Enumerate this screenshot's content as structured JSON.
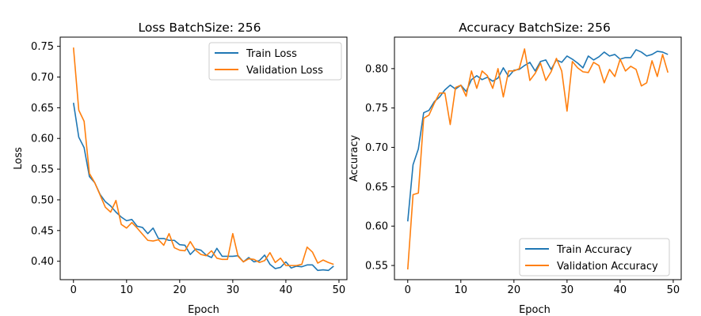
{
  "colors": {
    "train": "#1f77b4",
    "validation": "#ff7f0e"
  },
  "chart_data": [
    {
      "type": "line",
      "title": "Loss BatchSize: 256",
      "xlabel": "Epoch",
      "ylabel": "Loss",
      "xlim": [
        -2.5,
        51.5
      ],
      "ylim": [
        0.37,
        0.765
      ],
      "xticks": [
        0,
        10,
        20,
        30,
        40,
        50
      ],
      "yticks": [
        0.4,
        0.45,
        0.5,
        0.55,
        0.6,
        0.65,
        0.7,
        0.75
      ],
      "ytick_labels": [
        "0.40",
        "0.45",
        "0.50",
        "0.55",
        "0.60",
        "0.65",
        "0.70",
        "0.75"
      ],
      "legend": "upper-right",
      "grid": false,
      "series": [
        {
          "name": "Train Loss",
          "color_key": "train",
          "values": [
            0.658,
            0.602,
            0.585,
            0.538,
            0.528,
            0.509,
            0.497,
            0.49,
            0.48,
            0.472,
            0.466,
            0.468,
            0.457,
            0.455,
            0.445,
            0.454,
            0.437,
            0.437,
            0.434,
            0.434,
            0.427,
            0.426,
            0.411,
            0.42,
            0.418,
            0.41,
            0.406,
            0.421,
            0.408,
            0.408,
            0.408,
            0.409,
            0.399,
            0.406,
            0.399,
            0.401,
            0.41,
            0.395,
            0.388,
            0.39,
            0.399,
            0.389,
            0.392,
            0.391,
            0.394,
            0.394,
            0.385,
            0.386,
            0.385,
            0.392
          ]
        },
        {
          "name": "Validation Loss",
          "color_key": "validation",
          "values": [
            0.748,
            0.646,
            0.628,
            0.543,
            0.528,
            0.508,
            0.488,
            0.48,
            0.499,
            0.46,
            0.454,
            0.463,
            0.454,
            0.444,
            0.434,
            0.433,
            0.435,
            0.426,
            0.445,
            0.422,
            0.418,
            0.417,
            0.432,
            0.418,
            0.411,
            0.409,
            0.417,
            0.405,
            0.403,
            0.403,
            0.445,
            0.408,
            0.399,
            0.404,
            0.403,
            0.398,
            0.401,
            0.414,
            0.398,
            0.405,
            0.393,
            0.393,
            0.393,
            0.395,
            0.423,
            0.415,
            0.397,
            0.402,
            0.398,
            0.395
          ]
        }
      ]
    },
    {
      "type": "line",
      "title": "Accuracy BatchSize: 256",
      "xlabel": "Epoch",
      "ylabel": "Accuracy",
      "xlim": [
        -2.5,
        51.5
      ],
      "ylim": [
        0.532,
        0.84
      ],
      "xticks": [
        0,
        10,
        20,
        30,
        40,
        50
      ],
      "yticks": [
        0.55,
        0.6,
        0.65,
        0.7,
        0.75,
        0.8
      ],
      "ytick_labels": [
        "0.55",
        "0.60",
        "0.65",
        "0.70",
        "0.75",
        "0.80"
      ],
      "legend": "lower-right",
      "grid": false,
      "series": [
        {
          "name": "Train Accuracy",
          "color_key": "train",
          "values": [
            0.606,
            0.678,
            0.698,
            0.744,
            0.747,
            0.758,
            0.764,
            0.773,
            0.779,
            0.774,
            0.779,
            0.771,
            0.786,
            0.791,
            0.786,
            0.789,
            0.784,
            0.788,
            0.801,
            0.79,
            0.798,
            0.799,
            0.804,
            0.808,
            0.797,
            0.809,
            0.811,
            0.799,
            0.811,
            0.808,
            0.816,
            0.812,
            0.807,
            0.801,
            0.816,
            0.811,
            0.815,
            0.821,
            0.816,
            0.818,
            0.812,
            0.814,
            0.814,
            0.824,
            0.821,
            0.816,
            0.818,
            0.822,
            0.821,
            0.818
          ]
        },
        {
          "name": "Validation Accuracy",
          "color_key": "validation",
          "values": [
            0.545,
            0.64,
            0.642,
            0.737,
            0.741,
            0.756,
            0.769,
            0.769,
            0.729,
            0.776,
            0.779,
            0.765,
            0.797,
            0.775,
            0.797,
            0.791,
            0.775,
            0.8,
            0.764,
            0.797,
            0.797,
            0.8,
            0.825,
            0.785,
            0.794,
            0.807,
            0.785,
            0.796,
            0.813,
            0.797,
            0.746,
            0.809,
            0.801,
            0.796,
            0.795,
            0.808,
            0.804,
            0.782,
            0.799,
            0.79,
            0.812,
            0.797,
            0.803,
            0.799,
            0.778,
            0.782,
            0.81,
            0.79,
            0.818,
            0.795
          ]
        }
      ]
    }
  ]
}
